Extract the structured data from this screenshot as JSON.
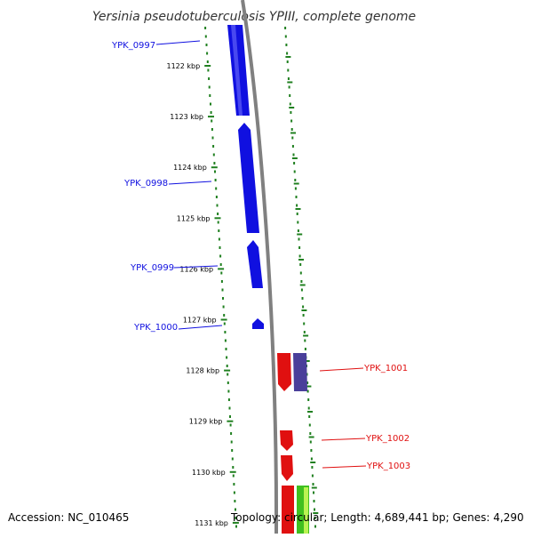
{
  "title": "Yersinia pseudotuberculosis YPIII, complete genome",
  "accession": "Accession: NC_010465",
  "summary": "Topology: circular; Length: 4,689,441 bp; Genes: 4,290",
  "ticks": [
    "1122 kbp",
    "1123 kbp",
    "1124 kbp",
    "1125 kbp",
    "1126 kbp",
    "1127 kbp",
    "1128 kbp",
    "1129 kbp",
    "1130 kbp",
    "1131 kbp"
  ],
  "genes_left": [
    {
      "name": "YPK_0997",
      "color": "#1010e0"
    },
    {
      "name": "YPK_0998",
      "color": "#1010e0"
    },
    {
      "name": "YPK_0999",
      "color": "#1010e0"
    },
    {
      "name": "YPK_1000",
      "color": "#1010e0"
    }
  ],
  "genes_right": [
    {
      "name": "YPK_1001",
      "color": "#e01010"
    },
    {
      "name": "YPK_1002",
      "color": "#e01010"
    },
    {
      "name": "YPK_1003",
      "color": "#e01010"
    }
  ],
  "colors": {
    "tick": "#208020",
    "backbone": "#808080",
    "forward": "#e01010",
    "reverse": "#1010e0",
    "other": "#4a3f9a",
    "green": "#40c020"
  }
}
